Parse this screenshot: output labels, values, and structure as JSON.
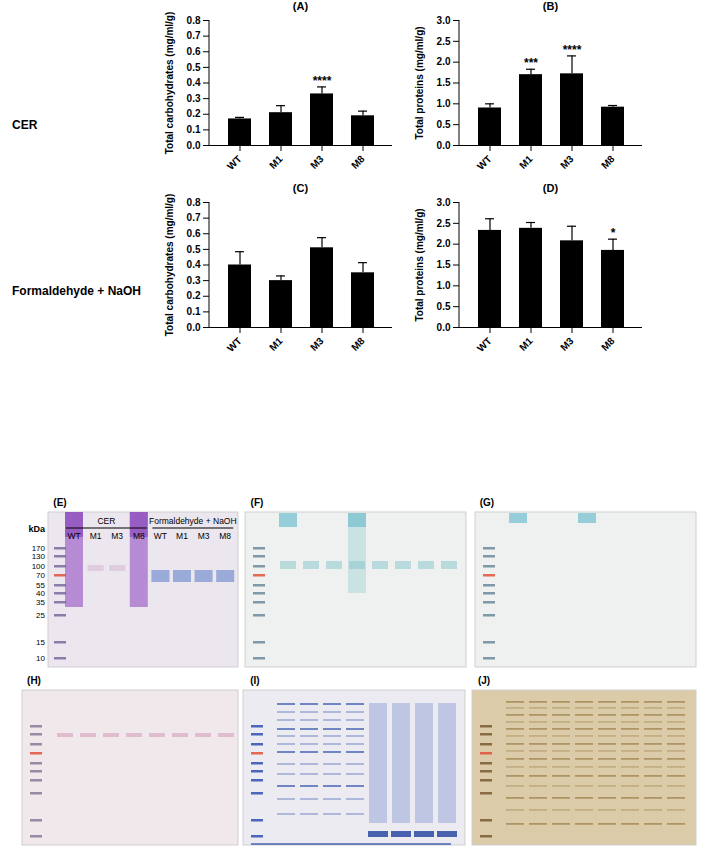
{
  "chart_data": [
    {
      "type": "bar",
      "title": "(A)",
      "y_label": "Total carbohydrates (mg/ml/g)",
      "categories": [
        "WT",
        "M1",
        "M3",
        "M8"
      ],
      "values": [
        0.17,
        0.21,
        0.33,
        0.19
      ],
      "errors": [
        0.01,
        0.045,
        0.045,
        0.03
      ],
      "significance": [
        null,
        null,
        "****",
        null
      ],
      "color": "#000000",
      "ylim": [
        0,
        0.8
      ],
      "yticks": [
        {
          "value": 0,
          "label": "0.0"
        },
        0.1,
        0.2,
        0.3,
        0.4,
        0.5,
        0.6,
        0.7,
        0.8
      ]
    },
    {
      "type": "bar",
      "title": "(B)",
      "y_label": "Total proteins (mg/ml/g)",
      "categories": [
        "WT",
        "M1",
        "M3",
        "M8"
      ],
      "values": [
        0.9,
        1.7,
        1.72,
        0.92
      ],
      "errors": [
        0.1,
        0.13,
        0.43,
        0.04
      ],
      "significance": [
        null,
        "***",
        "****",
        null
      ],
      "color": "#000000",
      "ylim": [
        0,
        3
      ],
      "yticks": [
        {
          "value": 0,
          "label": "0.0"
        },
        0.5,
        {
          "value": 1,
          "label": "1.0"
        },
        1.5,
        {
          "value": 2,
          "label": "2.0"
        },
        2.5,
        {
          "value": 3,
          "label": "3.0"
        }
      ]
    },
    {
      "type": "bar",
      "title": "(C)",
      "y_label": "Total carbohydrates (mg/ml/g)",
      "categories": [
        "WT",
        "M1",
        "M3",
        "M8"
      ],
      "values": [
        0.4,
        0.3,
        0.51,
        0.35
      ],
      "errors": [
        0.085,
        0.03,
        0.065,
        0.065
      ],
      "significance": [
        null,
        null,
        null,
        null
      ],
      "color": "#000000",
      "ylim": [
        0,
        0.8
      ],
      "yticks": [
        {
          "value": 0,
          "label": "0.0"
        },
        0.1,
        0.2,
        0.3,
        0.4,
        0.5,
        0.6,
        0.7,
        0.8
      ]
    },
    {
      "type": "bar",
      "title": "(D)",
      "y_label": "Total proteins (mg/ml/g)",
      "categories": [
        "WT",
        "M1",
        "M3",
        "M8"
      ],
      "values": [
        2.33,
        2.38,
        2.08,
        1.85
      ],
      "errors": [
        0.28,
        0.14,
        0.35,
        0.27
      ],
      "significance": [
        null,
        null,
        null,
        "*"
      ],
      "color": "#000000",
      "ylim": [
        0,
        3
      ],
      "yticks": [
        {
          "value": 0,
          "label": "0.0"
        },
        0.5,
        {
          "value": 1,
          "label": "1.0"
        },
        1.5,
        {
          "value": 2,
          "label": "2.0"
        },
        2.5,
        {
          "value": 3,
          "label": "3.0"
        }
      ]
    }
  ],
  "row_labels": [
    "CER",
    "Formaldehyde + NaOH"
  ],
  "gels": [
    {
      "panel": "(E)",
      "size_label": "kDa",
      "size_markers": [
        170,
        130,
        100,
        70,
        55,
        40,
        35,
        25,
        15,
        10
      ],
      "group_labels": [
        "CER",
        "Formaldehyde + NaOH"
      ],
      "lanes": [
        "WT",
        "M1",
        "M3",
        "M8",
        "WT",
        "M1",
        "M3",
        "M8"
      ]
    },
    {
      "panel": "(F)"
    },
    {
      "panel": "(G)"
    },
    {
      "panel": "(H)"
    },
    {
      "panel": "(I)"
    },
    {
      "panel": "(J)"
    }
  ]
}
